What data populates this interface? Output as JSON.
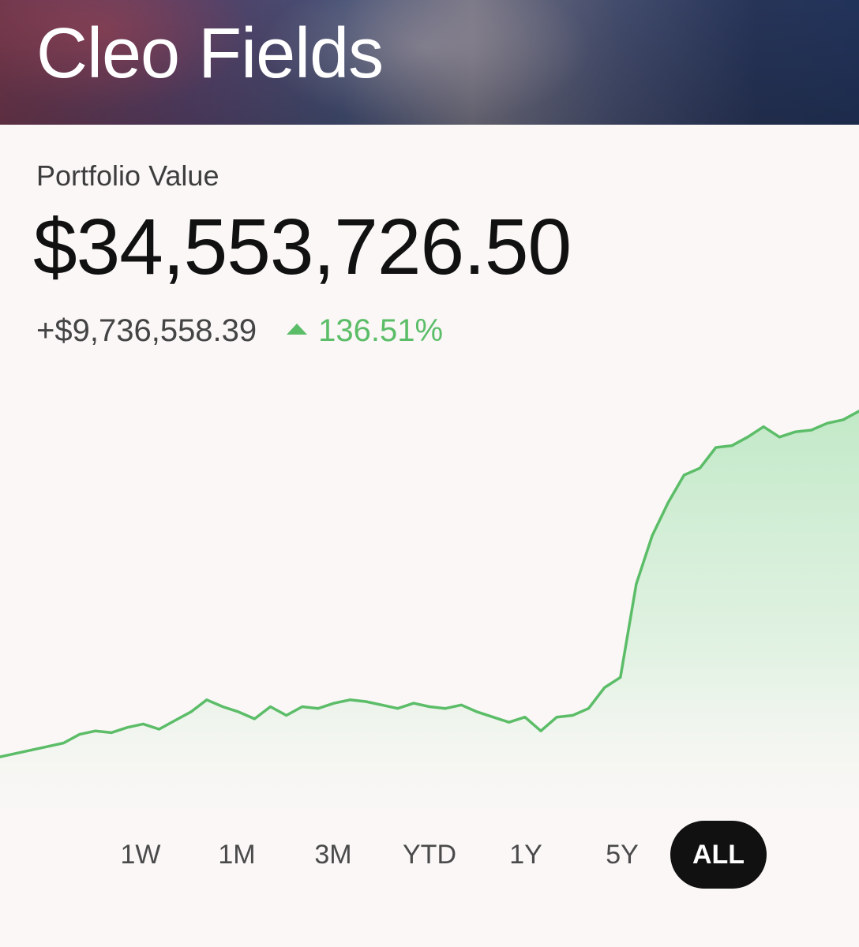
{
  "header": {
    "name": "Cleo Fields"
  },
  "portfolio": {
    "label": "Portfolio Value",
    "value": "$34,553,726.50",
    "change_amount": "+$9,736,558.39",
    "change_percent": "136.51%",
    "direction": "up"
  },
  "colors": {
    "accent_green": "#5cbd68",
    "fill_green": "#bfe8c5",
    "active_tab_bg": "#111111",
    "background": "#faf7f6"
  },
  "range_tabs": [
    {
      "label": "1W",
      "active": false
    },
    {
      "label": "1M",
      "active": false
    },
    {
      "label": "3M",
      "active": false
    },
    {
      "label": "YTD",
      "active": false
    },
    {
      "label": "1Y",
      "active": false
    },
    {
      "label": "5Y",
      "active": false
    },
    {
      "label": "ALL",
      "active": true
    }
  ],
  "chart_data": {
    "type": "area",
    "title": "",
    "xlabel": "",
    "ylabel": "",
    "grid": false,
    "series": [
      {
        "values": [
          0.05,
          0.07,
          0.09,
          0.11,
          0.13,
          0.18,
          0.2,
          0.19,
          0.22,
          0.24,
          0.21,
          0.26,
          0.31,
          0.38,
          0.34,
          0.31,
          0.27,
          0.34,
          0.29,
          0.34,
          0.33,
          0.36,
          0.38,
          0.37,
          0.35,
          0.33,
          0.36,
          0.34,
          0.33,
          0.35,
          0.31,
          0.28,
          0.25,
          0.28,
          0.2,
          0.28,
          0.29,
          0.33,
          0.45,
          0.51,
          1.05,
          1.33,
          1.52,
          1.68,
          1.72,
          1.84,
          1.85,
          1.9,
          1.96,
          1.9,
          1.93,
          1.94,
          1.98,
          2.0,
          2.05
        ]
      }
    ]
  }
}
